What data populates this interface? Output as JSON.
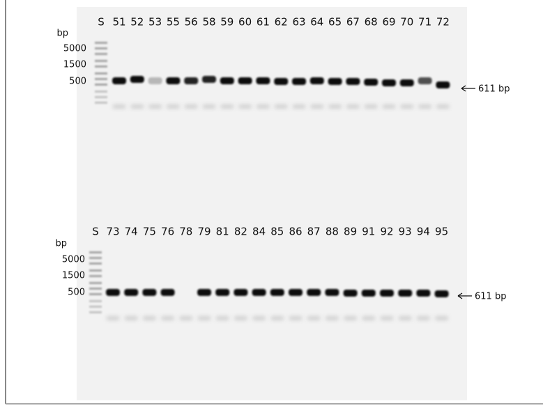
{
  "gels": [
    {
      "lanes": [
        "S",
        "51",
        "52",
        "53",
        "55",
        "56",
        "58",
        "59",
        "60",
        "61",
        "62",
        "63",
        "64",
        "65",
        "67",
        "68",
        "69",
        "70",
        "71",
        "72"
      ],
      "size_labels": [
        "bp",
        "5000",
        "1500",
        "500"
      ],
      "band_label": "611 bp"
    },
    {
      "lanes": [
        "S",
        "73",
        "74",
        "75",
        "76",
        "78",
        "79",
        "81",
        "82",
        "84",
        "85",
        "86",
        "87",
        "88",
        "89",
        "91",
        "92",
        "93",
        "94",
        "95"
      ],
      "size_labels": [
        "bp",
        "5000",
        "1500",
        "500"
      ],
      "band_label": "611 bp"
    }
  ]
}
